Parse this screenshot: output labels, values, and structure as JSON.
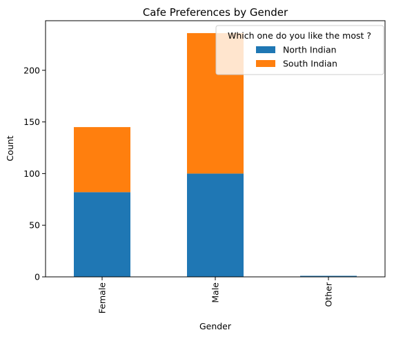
{
  "chart_data": {
    "type": "bar",
    "stacked": true,
    "title": "Cafe Preferences by Gender",
    "xlabel": "Gender",
    "ylabel": "Count",
    "categories": [
      "Female",
      "Male",
      "Other"
    ],
    "series": [
      {
        "name": "North Indian",
        "values": [
          82,
          100,
          1
        ],
        "color": "#1f77b4"
      },
      {
        "name": "South Indian",
        "values": [
          63,
          136,
          0
        ],
        "color": "#ff7f0e"
      }
    ],
    "ylim": [
      0,
      248
    ],
    "yticks": [
      0,
      50,
      100,
      150,
      200
    ],
    "legend": {
      "title": "Which one do you like the most ?",
      "placement": "top-right"
    },
    "grid": false
  }
}
